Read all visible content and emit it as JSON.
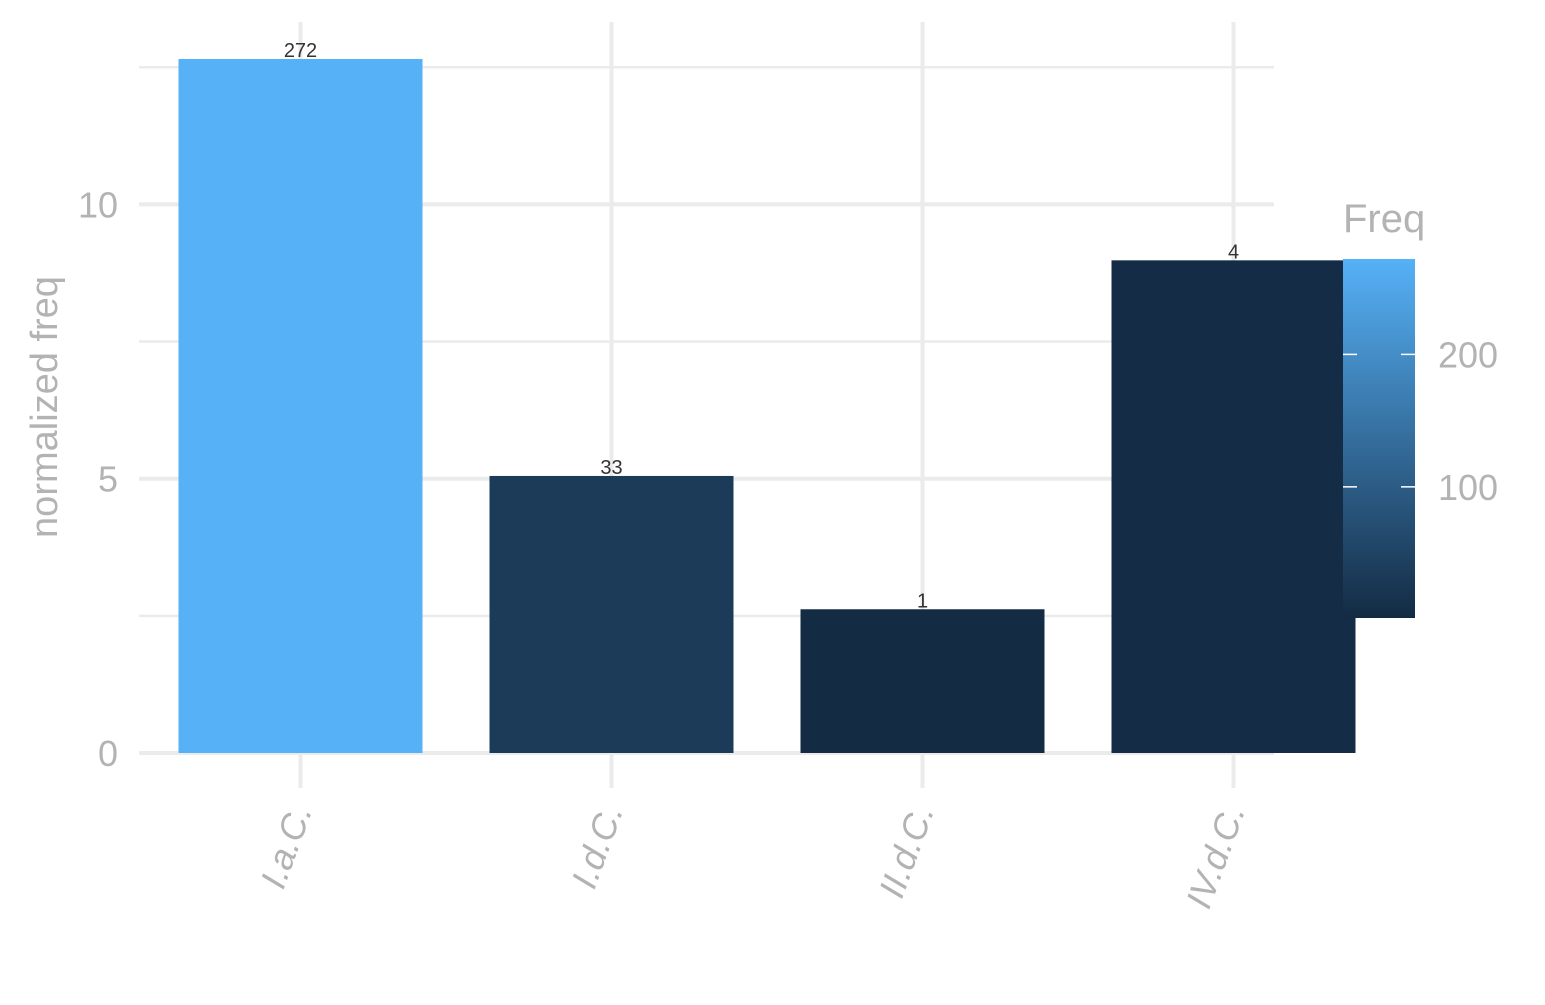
{
  "chart_data": {
    "type": "bar",
    "title": "",
    "xlabel": "",
    "ylabel": "normalized freq",
    "categories": [
      "I.a.C.",
      "I.d.C.",
      "II.d.C.",
      "IV.d.C."
    ],
    "values": [
      12.65,
      5.05,
      2.62,
      8.98
    ],
    "freq": [
      272,
      33,
      1,
      4
    ],
    "data_labels": [
      "272",
      "33",
      "1",
      "4"
    ],
    "ylim": [
      0,
      12.65
    ],
    "yticks": [
      0,
      5,
      10
    ],
    "grid": true,
    "legend": {
      "title": "Freq",
      "position": "right",
      "type": "colorbar",
      "range": [
        1,
        272
      ],
      "ticks": [
        100,
        200
      ],
      "tick_labels": [
        "100",
        "200"
      ],
      "color_low": "#132B43",
      "color_high": "#56B1F7"
    },
    "colors": {
      "low": "#132B43",
      "high": "#56B1F7",
      "grid": "#ebebeb",
      "axis_text": "#b3b3b3",
      "label_text": "#333333"
    }
  }
}
